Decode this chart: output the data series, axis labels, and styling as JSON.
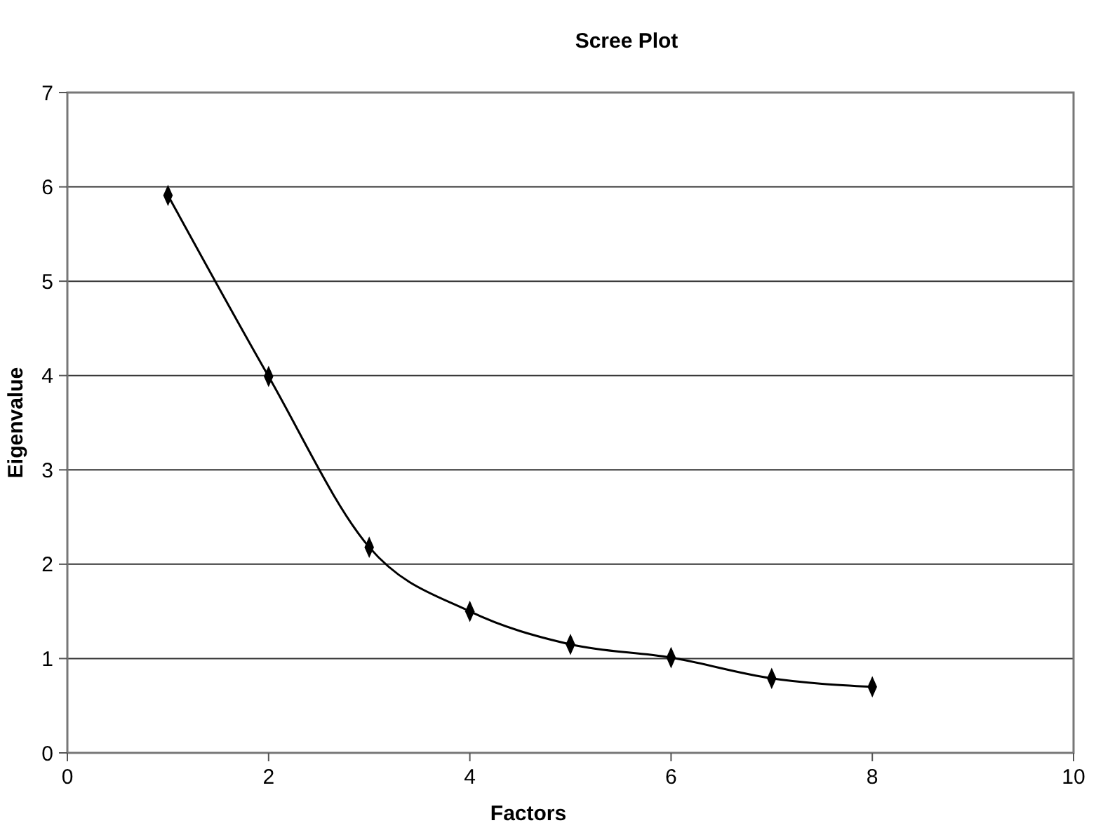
{
  "chart_data": {
    "type": "line",
    "title": "Scree Plot",
    "xlabel": "Factors",
    "ylabel": "Eigenvalue",
    "x": [
      1,
      2,
      3,
      4,
      5,
      6,
      7,
      8
    ],
    "series": [
      {
        "color": "#000000",
        "values": [
          5.91,
          3.99,
          2.18,
          1.5,
          1.15,
          1.01,
          0.79,
          0.7
        ]
      }
    ],
    "xlim": [
      0,
      10
    ],
    "xticks": [
      0,
      2,
      4,
      6,
      8,
      10
    ],
    "ylim": [
      0,
      7
    ],
    "yticks": [
      0,
      1,
      2,
      3,
      4,
      5,
      6,
      7
    ],
    "grid": "y",
    "marker": "diamond",
    "line_style": "solid"
  }
}
